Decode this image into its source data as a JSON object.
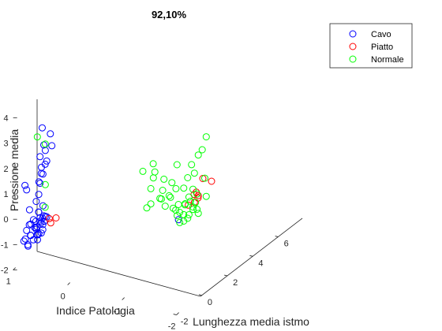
{
  "figure": {
    "background": "#ffffff",
    "axis_color": "#262626"
  },
  "chart_data": {
    "type": "scatter",
    "projection": "3d",
    "title": "92,10%",
    "xlabel": "Indice Patologia",
    "ylabel": "Lunghezza media istmo",
    "zlabel": "Pressione media",
    "xlim": [
      -2,
      1
    ],
    "ylim": [
      -2,
      6
    ],
    "zlim": [
      -2,
      4
    ],
    "x_ticks": [
      "1",
      "0",
      "-1",
      "-2"
    ],
    "y_ticks": [
      "-2",
      "0",
      "2",
      "4",
      "6"
    ],
    "z_ticks": [
      "-2",
      "-1",
      "0",
      "1",
      "2",
      "3",
      "4"
    ],
    "grid": false,
    "legend_position": "top-right",
    "marker": "open-circle",
    "series": [
      {
        "name": "Cavo",
        "color": "#0000ff",
        "points": [
          [
            0.7,
            -1.0,
            3.4
          ],
          [
            0.55,
            -1.0,
            3.25
          ],
          [
            0.6,
            -1.3,
            2.9
          ],
          [
            0.5,
            -1.1,
            2.85
          ],
          [
            0.55,
            -1.4,
            2.75
          ],
          [
            0.6,
            -1.6,
            2.55
          ],
          [
            0.5,
            -1.5,
            2.4
          ],
          [
            0.55,
            -1.7,
            2.2
          ],
          [
            0.6,
            -1.2,
            2.1
          ],
          [
            0.5,
            -1.8,
            2.0
          ],
          [
            0.6,
            -1.5,
            1.85
          ],
          [
            0.55,
            -1.9,
            1.7
          ],
          [
            0.6,
            -1.6,
            1.5
          ],
          [
            0.9,
            -1.5,
            1.2
          ],
          [
            0.8,
            -1.8,
            1.2
          ],
          [
            0.6,
            -1.7,
            1.1
          ],
          [
            0.6,
            -1.9,
            0.9
          ],
          [
            0.5,
            -1.8,
            0.75
          ],
          [
            0.7,
            -2.0,
            0.55
          ],
          [
            0.6,
            -1.7,
            0.4
          ],
          [
            0.55,
            -1.8,
            0.25
          ],
          [
            0.65,
            -1.9,
            0.15
          ],
          [
            0.5,
            -1.7,
            0.1
          ],
          [
            0.6,
            -1.6,
            0.0
          ],
          [
            0.7,
            -1.9,
            -0.05
          ],
          [
            0.55,
            -1.6,
            -0.1
          ],
          [
            0.75,
            -1.8,
            -0.15
          ],
          [
            0.6,
            -1.9,
            -0.2
          ],
          [
            0.65,
            -1.7,
            -0.25
          ],
          [
            0.7,
            -1.6,
            -0.3
          ],
          [
            0.55,
            -2.0,
            -0.35
          ],
          [
            0.8,
            -1.8,
            -0.4
          ],
          [
            0.6,
            -1.7,
            -0.45
          ],
          [
            0.7,
            -1.9,
            -0.5
          ],
          [
            0.65,
            -1.6,
            -0.55
          ],
          [
            0.75,
            -1.7,
            -0.6
          ],
          [
            0.6,
            -1.8,
            -0.65
          ],
          [
            0.8,
            -1.9,
            -0.7
          ],
          [
            0.7,
            -1.7,
            -0.75
          ],
          [
            0.85,
            -1.8,
            -0.85
          ],
          [
            0.75,
            -1.9,
            -0.95
          ],
          [
            0.8,
            -1.7,
            -1.0
          ],
          [
            0.5,
            -1.5,
            0.2
          ],
          [
            0.6,
            -1.4,
            0.05
          ],
          [
            0.7,
            -1.5,
            -0.1
          ],
          [
            0.55,
            -1.4,
            0.15
          ],
          [
            0.65,
            -1.5,
            0.3
          ],
          [
            0.6,
            -1.3,
            0.1
          ],
          [
            0.55,
            -1.6,
            -0.3
          ],
          [
            0.7,
            -1.4,
            -0.35
          ],
          [
            0.6,
            -1.5,
            -0.5
          ],
          [
            0.65,
            -1.3,
            -0.2
          ],
          [
            -0.75,
            3.5,
            -1.1
          ]
        ]
      },
      {
        "name": "Piatto",
        "color": "#ff0000",
        "points": [
          [
            0.5,
            -1.3,
            0.05
          ],
          [
            0.4,
            -1.2,
            0.1
          ],
          [
            0.45,
            -1.4,
            -0.05
          ],
          [
            -0.8,
            5.2,
            -0.1
          ],
          [
            -0.75,
            4.9,
            -0.55
          ],
          [
            -1.1,
            4.6,
            0.2
          ],
          [
            -0.95,
            4.2,
            -0.3
          ],
          [
            -0.9,
            4.4,
            -0.5
          ],
          [
            -0.85,
            4.3,
            -0.35
          ],
          [
            -0.95,
            3.9,
            -0.45
          ],
          [
            -0.85,
            3.85,
            -0.6
          ]
        ]
      },
      {
        "name": "Normale",
        "color": "#00ff00",
        "points": [
          [
            0.65,
            -1.6,
            3.3
          ],
          [
            0.55,
            -1.4,
            3.0
          ],
          [
            0.55,
            -1.4,
            1.4
          ],
          [
            0.6,
            -1.2,
            0.4
          ],
          [
            -1.05,
            4.4,
            2.0
          ],
          [
            -1.0,
            4.3,
            1.5
          ],
          [
            -0.5,
            2.6,
            0.75
          ],
          [
            -0.55,
            2.5,
            1.05
          ],
          [
            -0.45,
            2.8,
            1.2
          ],
          [
            -0.6,
            3.0,
            0.6
          ],
          [
            -0.4,
            2.2,
            1.1
          ],
          [
            -0.5,
            2.4,
            0.4
          ],
          [
            -0.6,
            2.9,
            0.2
          ],
          [
            -0.7,
            3.2,
            0.45
          ],
          [
            -0.65,
            3.3,
            -0.2
          ],
          [
            -0.75,
            3.5,
            -0.5
          ],
          [
            -0.8,
            3.7,
            0.1
          ],
          [
            -0.9,
            4.0,
            0.0
          ],
          [
            -0.85,
            3.8,
            0.5
          ],
          [
            -0.7,
            3.6,
            1.0
          ],
          [
            -0.95,
            4.2,
            1.3
          ],
          [
            -0.85,
            4.1,
            0.9
          ],
          [
            -0.6,
            2.8,
            -0.1
          ],
          [
            -0.75,
            3.3,
            0.2
          ],
          [
            -0.95,
            3.9,
            0.7
          ],
          [
            -0.9,
            3.8,
            -0.4
          ],
          [
            -0.8,
            3.8,
            -0.6
          ],
          [
            -0.9,
            4.0,
            -0.8
          ],
          [
            -0.85,
            3.9,
            -1.0
          ],
          [
            -0.95,
            4.1,
            -0.8
          ],
          [
            -0.8,
            3.7,
            -0.95
          ],
          [
            -0.9,
            4.0,
            -0.7
          ],
          [
            -0.75,
            3.6,
            -0.85
          ],
          [
            -0.7,
            3.5,
            -0.75
          ],
          [
            -0.85,
            3.8,
            -1.1
          ],
          [
            -0.95,
            4.2,
            -1.0
          ],
          [
            -0.8,
            3.7,
            -1.2
          ],
          [
            -0.75,
            3.6,
            -1.25
          ],
          [
            -0.85,
            3.9,
            -0.3
          ],
          [
            -0.65,
            3.2,
            -0.1
          ],
          [
            -0.5,
            2.4,
            -0.2
          ],
          [
            -0.45,
            2.3,
            -0.35
          ],
          [
            -0.6,
            3.1,
            -0.5
          ],
          [
            -0.55,
            2.9,
            -0.15
          ],
          [
            -1.0,
            4.5,
            0.3
          ],
          [
            -0.95,
            4.1,
            -0.2
          ],
          [
            -0.75,
            3.4,
            -0.9
          ],
          [
            -0.7,
            3.3,
            -0.6
          ],
          [
            -0.85,
            3.6,
            -0.45
          ],
          [
            -1.05,
            4.4,
            -0.35
          ],
          [
            -0.9,
            4.2,
            -0.6
          ]
        ]
      }
    ]
  }
}
